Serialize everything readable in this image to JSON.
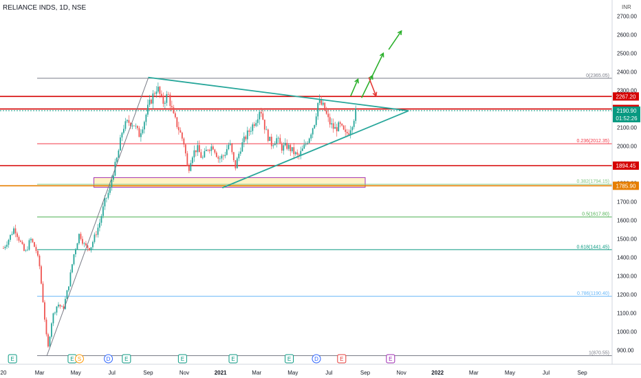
{
  "header": {
    "symbol": "RELIANCE INDS, 1D, NSE",
    "currency": "INR"
  },
  "chart_data": {
    "type": "candlestick",
    "y_range": [
      850,
      2750
    ],
    "y_ticks": [
      900,
      1000,
      1100,
      1200,
      1300,
      1400,
      1500,
      1600,
      1700,
      1800,
      1900,
      2000,
      2100,
      2200,
      2300,
      2400,
      2500,
      2600,
      2700
    ],
    "x_tick_labels": [
      {
        "label": "20",
        "month": 0
      },
      {
        "label": "Mar",
        "month": 2
      },
      {
        "label": "May",
        "month": 4
      },
      {
        "label": "Jul",
        "month": 6
      },
      {
        "label": "Sep",
        "month": 8
      },
      {
        "label": "Nov",
        "month": 10
      },
      {
        "label": "2021",
        "month": 12
      },
      {
        "label": "Mar",
        "month": 14
      },
      {
        "label": "May",
        "month": 16
      },
      {
        "label": "Jul",
        "month": 18
      },
      {
        "label": "Sep",
        "month": 20
      },
      {
        "label": "Nov",
        "month": 22
      },
      {
        "label": "2022",
        "month": 24
      },
      {
        "label": "Mar",
        "month": 26
      },
      {
        "label": "May",
        "month": 28
      },
      {
        "label": "Jul",
        "month": 30
      },
      {
        "label": "Sep",
        "month": 32
      }
    ],
    "price_path": [
      [
        0.0,
        1450
      ],
      [
        0.3,
        1500
      ],
      [
        0.6,
        1560
      ],
      [
        0.9,
        1490
      ],
      [
        1.2,
        1420
      ],
      [
        1.5,
        1500
      ],
      [
        1.8,
        1440
      ],
      [
        2.0,
        1350
      ],
      [
        2.2,
        1150
      ],
      [
        2.45,
        900
      ],
      [
        2.7,
        1080
      ],
      [
        3.0,
        1150
      ],
      [
        3.3,
        1120
      ],
      [
        3.6,
        1250
      ],
      [
        3.9,
        1420
      ],
      [
        4.2,
        1530
      ],
      [
        4.5,
        1460
      ],
      [
        4.8,
        1450
      ],
      [
        5.0,
        1500
      ],
      [
        5.3,
        1580
      ],
      [
        5.6,
        1700
      ],
      [
        5.9,
        1770
      ],
      [
        6.0,
        1830
      ],
      [
        6.3,
        1940
      ],
      [
        6.6,
        2100
      ],
      [
        6.9,
        2130
      ],
      [
        7.2,
        2120
      ],
      [
        7.5,
        2060
      ],
      [
        7.8,
        2140
      ],
      [
        8.0,
        2210
      ],
      [
        8.3,
        2280
      ],
      [
        8.5,
        2320
      ],
      [
        8.8,
        2230
      ],
      [
        9.1,
        2280
      ],
      [
        9.4,
        2160
      ],
      [
        9.7,
        2090
      ],
      [
        10.0,
        2010
      ],
      [
        10.2,
        1860
      ],
      [
        10.4,
        1950
      ],
      [
        10.7,
        1990
      ],
      [
        11.0,
        1930
      ],
      [
        11.3,
        1990
      ],
      [
        11.6,
        2000
      ],
      [
        11.9,
        1930
      ],
      [
        12.2,
        1950
      ],
      [
        12.5,
        2020
      ],
      [
        12.8,
        1880
      ],
      [
        13.1,
        1990
      ],
      [
        13.4,
        2050
      ],
      [
        13.7,
        2100
      ],
      [
        14.0,
        2150
      ],
      [
        14.2,
        2210
      ],
      [
        14.5,
        2080
      ],
      [
        14.8,
        2010
      ],
      [
        15.1,
        2040
      ],
      [
        15.4,
        1990
      ],
      [
        15.7,
        2000
      ],
      [
        16.0,
        1970
      ],
      [
        16.3,
        1940
      ],
      [
        16.6,
        1990
      ],
      [
        16.9,
        2050
      ],
      [
        17.2,
        2130
      ],
      [
        17.4,
        2240
      ],
      [
        17.7,
        2210
      ],
      [
        18.0,
        2130
      ],
      [
        18.3,
        2090
      ],
      [
        18.6,
        2110
      ],
      [
        18.9,
        2060
      ],
      [
        19.1,
        2080
      ],
      [
        19.3,
        2130
      ],
      [
        19.5,
        2190
      ]
    ],
    "fibonacci": [
      {
        "label": "0(2365.05)",
        "value": 2365.05,
        "color": "#787b86"
      },
      {
        "label": "0.236(2012.35)",
        "value": 2012.35,
        "color": "#f23645"
      },
      {
        "label": "0.382(1794.15)",
        "value": 1794.15,
        "color": "#81c784"
      },
      {
        "label": "0.5(1617.80)",
        "value": 1617.8,
        "color": "#4caf50"
      },
      {
        "label": "0.618(1441.45)",
        "value": 1441.45,
        "color": "#089981"
      },
      {
        "label": "0.786(1190.40)",
        "value": 1190.4,
        "color": "#64b5f6"
      },
      {
        "label": "1(870.55)",
        "value": 870.55,
        "color": "#787b86"
      }
    ],
    "horizontal_levels": [
      {
        "label": "2267.20",
        "value": 2267.2,
        "color": "#d50000"
      },
      {
        "label": "2199.95",
        "value": 2199.95,
        "color": "#d50000"
      },
      {
        "label": "1894.45",
        "value": 1894.45,
        "color": "#d50000"
      },
      {
        "label": "1785.90",
        "value": 1785.9,
        "color": "#e67e00"
      }
    ],
    "current_price": {
      "label": "2190.90",
      "countdown": "01:52:26",
      "value": 2190.9,
      "color": "#089981"
    },
    "trendlines": [
      {
        "from": [
          8.0,
          2370
        ],
        "to": [
          22.4,
          2190
        ],
        "color": "#26a69a"
      },
      {
        "from": [
          12.1,
          1775
        ],
        "to": [
          22.4,
          2190
        ],
        "color": "#26a69a"
      },
      {
        "from": [
          2.4,
          870
        ],
        "to": [
          8.0,
          2365
        ],
        "color": "#787b86"
      }
    ],
    "zone": {
      "from_month": 5.0,
      "to_month": 20.0,
      "low": 1778,
      "high": 1830,
      "color": "#9c27b0"
    },
    "arrows": [
      {
        "from": [
          19.2,
          2270
        ],
        "to": [
          19.6,
          2360
        ],
        "color": "#2bb02b"
      },
      {
        "from": [
          19.8,
          2260
        ],
        "to": [
          20.4,
          2380
        ],
        "color": "#2bb02b"
      },
      {
        "from": [
          20.3,
          2360
        ],
        "to": [
          21.0,
          2500
        ],
        "color": "#2bb02b"
      },
      {
        "from": [
          21.3,
          2520
        ],
        "to": [
          22.0,
          2620
        ],
        "color": "#2bb02b"
      },
      {
        "from": [
          20.2,
          2370
        ],
        "to": [
          20.6,
          2270
        ],
        "color": "#e53935"
      }
    ],
    "events": [
      {
        "kind": "E",
        "month": 0.5,
        "color": "#089981"
      },
      {
        "kind": "E",
        "month": 3.8,
        "color": "#089981"
      },
      {
        "kind": "S",
        "month": 4.2,
        "color": "#ff9800"
      },
      {
        "kind": "D",
        "month": 5.8,
        "color": "#2962ff"
      },
      {
        "kind": "E",
        "month": 6.8,
        "color": "#089981"
      },
      {
        "kind": "E",
        "month": 9.9,
        "color": "#089981"
      },
      {
        "kind": "E",
        "month": 12.7,
        "color": "#089981"
      },
      {
        "kind": "E",
        "month": 15.8,
        "color": "#089981"
      },
      {
        "kind": "D",
        "month": 17.3,
        "color": "#2962ff"
      },
      {
        "kind": "E",
        "month": 18.7,
        "color": "#e53935"
      },
      {
        "kind": "E",
        "month": 21.4,
        "color": "#9c27b0"
      }
    ]
  }
}
